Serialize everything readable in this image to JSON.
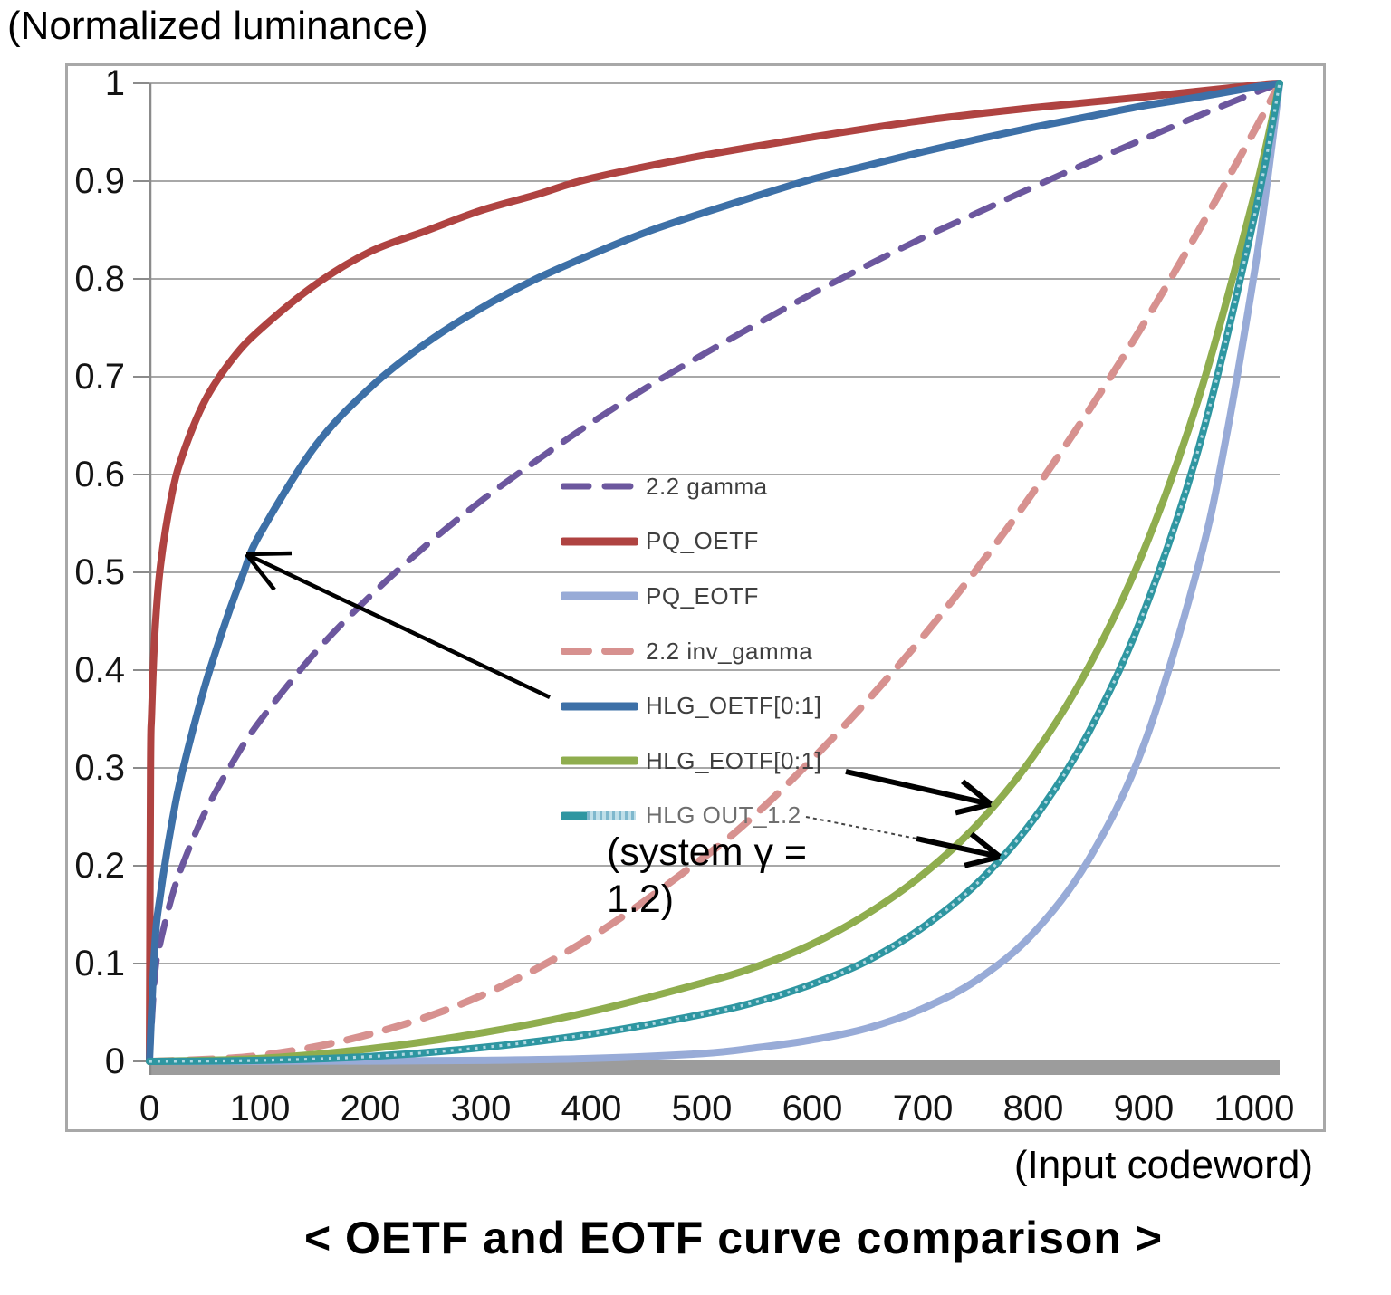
{
  "figure": {
    "y_axis_title": "(Normalized luminance)",
    "x_axis_title": "(Input codeword)",
    "caption": "< OETF and EOTF curve comparison >",
    "annotation": "(system γ =\n1.2)"
  },
  "chart_data": {
    "type": "line",
    "title": "< OETF and EOTF curve comparison >",
    "xlabel": "(Input codeword)",
    "ylabel": "(Normalized luminance)",
    "xlim": [
      0,
      1023
    ],
    "ylim": [
      0,
      1
    ],
    "grid": "horizontal",
    "legend_position": "center",
    "x_ticks": [
      0,
      100,
      200,
      300,
      400,
      500,
      600,
      700,
      800,
      900,
      1000
    ],
    "x_tick_labels": [
      "0",
      "100",
      "200",
      "300",
      "400",
      "500",
      "600",
      "700",
      "800",
      "900",
      "1000"
    ],
    "y_ticks": [
      1,
      0.9,
      0.8,
      0.7,
      0.6,
      0.5,
      0.4,
      0.3,
      0.2,
      0.1,
      0
    ],
    "y_tick_labels": [
      "1",
      "0.9",
      "0.8",
      "0.7",
      "0.6",
      "0.5",
      "0.4",
      "0.3",
      "0.2",
      "0.1",
      "0"
    ],
    "series": [
      {
        "name": "2.2 gamma",
        "color": "#6C579E",
        "line": "dashed",
        "dash": "26 17",
        "width": 7,
        "points": [
          [
            0,
            0
          ],
          [
            5,
            0.089
          ],
          [
            10,
            0.122
          ],
          [
            20,
            0.167
          ],
          [
            30,
            0.201
          ],
          [
            50,
            0.254
          ],
          [
            75,
            0.305
          ],
          [
            100,
            0.348
          ],
          [
            150,
            0.418
          ],
          [
            200,
            0.476
          ],
          [
            250,
            0.527
          ],
          [
            300,
            0.573
          ],
          [
            350,
            0.614
          ],
          [
            400,
            0.653
          ],
          [
            450,
            0.689
          ],
          [
            500,
            0.722
          ],
          [
            550,
            0.754
          ],
          [
            600,
            0.785
          ],
          [
            650,
            0.814
          ],
          [
            700,
            0.842
          ],
          [
            750,
            0.868
          ],
          [
            800,
            0.894
          ],
          [
            850,
            0.919
          ],
          [
            900,
            0.943
          ],
          [
            950,
            0.967
          ],
          [
            1000,
            0.99
          ],
          [
            1023,
            1
          ]
        ]
      },
      {
        "name": "PQ_OETF",
        "color": "#AF4341",
        "line": "solid",
        "width": 8,
        "points": [
          [
            0,
            0
          ],
          [
            1,
            0.298
          ],
          [
            2,
            0.355
          ],
          [
            5,
            0.439
          ],
          [
            10,
            0.507
          ],
          [
            20,
            0.578
          ],
          [
            30,
            0.62
          ],
          [
            50,
            0.675
          ],
          [
            75,
            0.718
          ],
          [
            100,
            0.748
          ],
          [
            150,
            0.794
          ],
          [
            200,
            0.828
          ],
          [
            250,
            0.849
          ],
          [
            300,
            0.87
          ],
          [
            350,
            0.886
          ],
          [
            400,
            0.903
          ],
          [
            500,
            0.926
          ],
          [
            600,
            0.945
          ],
          [
            700,
            0.962
          ],
          [
            800,
            0.975
          ],
          [
            900,
            0.986
          ],
          [
            1000,
            0.998
          ],
          [
            1023,
            1
          ]
        ]
      },
      {
        "name": "PQ_EOTF",
        "color": "#98ABD7",
        "line": "solid",
        "width": 8,
        "points": [
          [
            0,
            0
          ],
          [
            100,
            0.0001
          ],
          [
            200,
            0.0004
          ],
          [
            300,
            0.001
          ],
          [
            400,
            0.003
          ],
          [
            500,
            0.008
          ],
          [
            550,
            0.014
          ],
          [
            600,
            0.022
          ],
          [
            650,
            0.034
          ],
          [
            700,
            0.054
          ],
          [
            750,
            0.084
          ],
          [
            800,
            0.131
          ],
          [
            850,
            0.206
          ],
          [
            900,
            0.323
          ],
          [
            950,
            0.509
          ],
          [
            975,
            0.64
          ],
          [
            1000,
            0.805
          ],
          [
            1010,
            0.883
          ],
          [
            1023,
            1
          ]
        ]
      },
      {
        "name": "2.2 inv_gamma",
        "color": "#D7918F",
        "line": "dashed",
        "dash": "26 18",
        "width": 8,
        "points": [
          [
            0,
            0
          ],
          [
            100,
            0.006
          ],
          [
            200,
            0.028
          ],
          [
            300,
            0.067
          ],
          [
            400,
            0.127
          ],
          [
            500,
            0.207
          ],
          [
            550,
            0.254
          ],
          [
            600,
            0.309
          ],
          [
            650,
            0.369
          ],
          [
            700,
            0.434
          ],
          [
            750,
            0.505
          ],
          [
            800,
            0.582
          ],
          [
            850,
            0.665
          ],
          [
            900,
            0.754
          ],
          [
            950,
            0.85
          ],
          [
            1000,
            0.951
          ],
          [
            1023,
            1
          ]
        ]
      },
      {
        "name": "HLG_OETF[0:1]",
        "color": "#3D70A7",
        "line": "solid",
        "width": 8,
        "points": [
          [
            0,
            0
          ],
          [
            5,
            0.121
          ],
          [
            10,
            0.171
          ],
          [
            20,
            0.242
          ],
          [
            30,
            0.297
          ],
          [
            50,
            0.383
          ],
          [
            70,
            0.453
          ],
          [
            85,
            0.499
          ],
          [
            100,
            0.539
          ],
          [
            150,
            0.629
          ],
          [
            200,
            0.689
          ],
          [
            250,
            0.734
          ],
          [
            300,
            0.77
          ],
          [
            350,
            0.8
          ],
          [
            400,
            0.825
          ],
          [
            450,
            0.848
          ],
          [
            500,
            0.867
          ],
          [
            550,
            0.885
          ],
          [
            600,
            0.902
          ],
          [
            650,
            0.916
          ],
          [
            700,
            0.93
          ],
          [
            750,
            0.943
          ],
          [
            800,
            0.955
          ],
          [
            850,
            0.966
          ],
          [
            900,
            0.977
          ],
          [
            950,
            0.986
          ],
          [
            1000,
            0.996
          ],
          [
            1023,
            1
          ]
        ]
      },
      {
        "name": "HLG_EOTF[0:1]",
        "color": "#8FAD4E",
        "line": "solid",
        "width": 8,
        "points": [
          [
            0,
            0
          ],
          [
            100,
            0.003
          ],
          [
            200,
            0.013
          ],
          [
            300,
            0.029
          ],
          [
            400,
            0.051
          ],
          [
            500,
            0.08
          ],
          [
            550,
            0.097
          ],
          [
            600,
            0.12
          ],
          [
            650,
            0.151
          ],
          [
            700,
            0.191
          ],
          [
            750,
            0.243
          ],
          [
            800,
            0.312
          ],
          [
            850,
            0.403
          ],
          [
            900,
            0.522
          ],
          [
            950,
            0.679
          ],
          [
            1000,
            0.885
          ],
          [
            1023,
            1
          ]
        ]
      },
      {
        "name": "HLG OUT_1.2",
        "color": "#2E96A1",
        "line": "pattern",
        "pattern_color": "#BFDFE9",
        "width": 8,
        "label_color": "#6E6E6E",
        "points": [
          [
            0,
            0
          ],
          [
            100,
            0.001
          ],
          [
            200,
            0.005
          ],
          [
            300,
            0.014
          ],
          [
            400,
            0.028
          ],
          [
            500,
            0.048
          ],
          [
            550,
            0.061
          ],
          [
            600,
            0.079
          ],
          [
            650,
            0.103
          ],
          [
            700,
            0.137
          ],
          [
            750,
            0.183
          ],
          [
            800,
            0.247
          ],
          [
            850,
            0.336
          ],
          [
            900,
            0.459
          ],
          [
            950,
            0.628
          ],
          [
            1000,
            0.863
          ],
          [
            1023,
            1
          ]
        ]
      }
    ]
  }
}
